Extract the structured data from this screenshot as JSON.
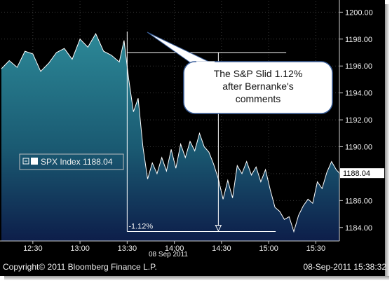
{
  "chart_data": {
    "type": "area",
    "ticker_legend": {
      "name": "SPX Index",
      "value": "1188.04"
    },
    "last_price_label": "1188.04",
    "y_ticks": [
      "1184.00",
      "1186.00",
      "1188.00",
      "1190.00",
      "1192.00",
      "1194.00",
      "1196.00",
      "1198.00",
      "1200.00"
    ],
    "ylim": [
      1183.0,
      1200.8
    ],
    "x_ticks": [
      "12:30",
      "13:00",
      "13:30",
      "14:00",
      "14:30",
      "15:00",
      "15:30"
    ],
    "x_tick_minutes": [
      750,
      780,
      810,
      840,
      870,
      900,
      930
    ],
    "xlim_minutes": [
      730,
      945
    ],
    "date_label": "08 Sep 2011",
    "series": [
      {
        "x_minutes": [
          730,
          735,
          740,
          745,
          750,
          755,
          760,
          765,
          770,
          775,
          780,
          785,
          790,
          795,
          800,
          805,
          808,
          811,
          814,
          817,
          820,
          823,
          826,
          829,
          832,
          835,
          838,
          841,
          844,
          847,
          850,
          853,
          856,
          859,
          862,
          865,
          868,
          871,
          874,
          877,
          880,
          883,
          886,
          889,
          892,
          895,
          898,
          901,
          904,
          907,
          910,
          913,
          916,
          919,
          922,
          925,
          928,
          931,
          934,
          937,
          940,
          943,
          945
        ],
        "values": [
          1195.8,
          1196.4,
          1195.9,
          1197.1,
          1196.9,
          1195.6,
          1196.2,
          1197.0,
          1197.3,
          1196.5,
          1198.0,
          1197.4,
          1198.4,
          1197.1,
          1196.8,
          1196.3,
          1197.9,
          1195.0,
          1192.6,
          1193.6,
          1190.0,
          1187.6,
          1188.8,
          1188.0,
          1189.2,
          1188.2,
          1189.8,
          1188.4,
          1190.2,
          1189.2,
          1190.4,
          1189.7,
          1191.0,
          1190.0,
          1189.6,
          1188.7,
          1187.6,
          1186.1,
          1187.5,
          1186.2,
          1188.6,
          1188.0,
          1188.9,
          1187.9,
          1188.5,
          1187.4,
          1188.3,
          1186.8,
          1185.5,
          1185.2,
          1184.6,
          1184.8,
          1183.7,
          1184.9,
          1185.6,
          1186.1,
          1185.8,
          1187.4,
          1186.9,
          1188.1,
          1188.9,
          1188.3,
          1188.04
        ]
      }
    ],
    "annotation_callout": "The S&P Slid 1.12% after Bernanke's comments",
    "annotation_change_label": "-1.12%",
    "annotation_high": 1197.0,
    "annotation_low": 1183.7,
    "annotation_start_minute": 810,
    "annotation_end_minute": 900,
    "colors": {
      "area_top": "#2c8897",
      "area_bottom": "#0d1e4a",
      "line": "#ffffff",
      "background": "#000000"
    },
    "grid": true
  },
  "footer": {
    "copyright": "Copyright© 2011 Bloomberg Finance L.P.",
    "timestamp": "08-Sep-2011  15:38:32"
  }
}
